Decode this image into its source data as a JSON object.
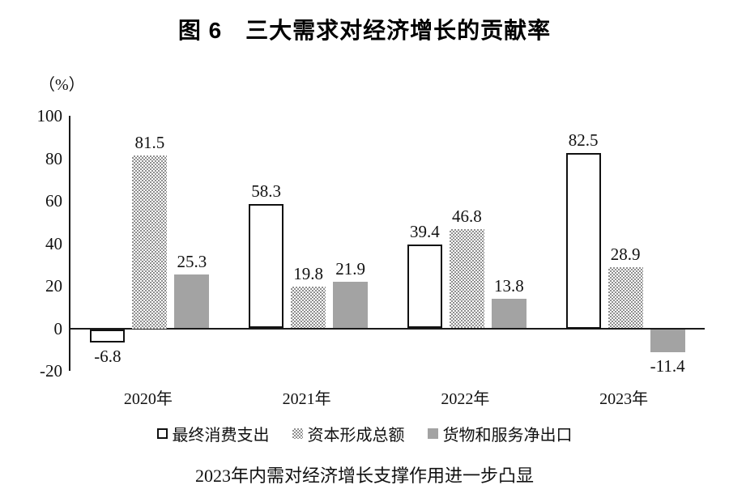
{
  "colors": {
    "axis": "#1a1a1a",
    "bar_outline_fill": "#ffffff",
    "bar_outline_border": "#111111",
    "bar_pattern_dot": "#8f8f8f",
    "bar_solid_gray": "#a3a3a3",
    "text": "#111111"
  },
  "chart_data": {
    "type": "bar",
    "title": "图 6　三大需求对经济增长的贡献率",
    "caption": "2023年内需对经济增长支撑作用进一步凸显",
    "ylabel": "（%）",
    "xlabel": "",
    "ylim": [
      -20,
      100
    ],
    "yticks": [
      100,
      80,
      60,
      40,
      20,
      0,
      -20
    ],
    "grid": false,
    "legend_position": "bottom",
    "categories": [
      "2020年",
      "2021年",
      "2022年",
      "2023年"
    ],
    "series": [
      {
        "key": "final-consumption",
        "name": "最终消费支出",
        "style": "outlined-white",
        "values": [
          -6.8,
          58.3,
          39.4,
          82.5
        ]
      },
      {
        "key": "capital-formation",
        "name": "资本形成总额",
        "style": "dotted-pattern",
        "values": [
          81.5,
          19.8,
          46.8,
          28.9
        ]
      },
      {
        "key": "net-exports",
        "name": "货物和服务净出口",
        "style": "solid-gray",
        "values": [
          25.3,
          21.9,
          13.8,
          -11.4
        ]
      }
    ]
  }
}
